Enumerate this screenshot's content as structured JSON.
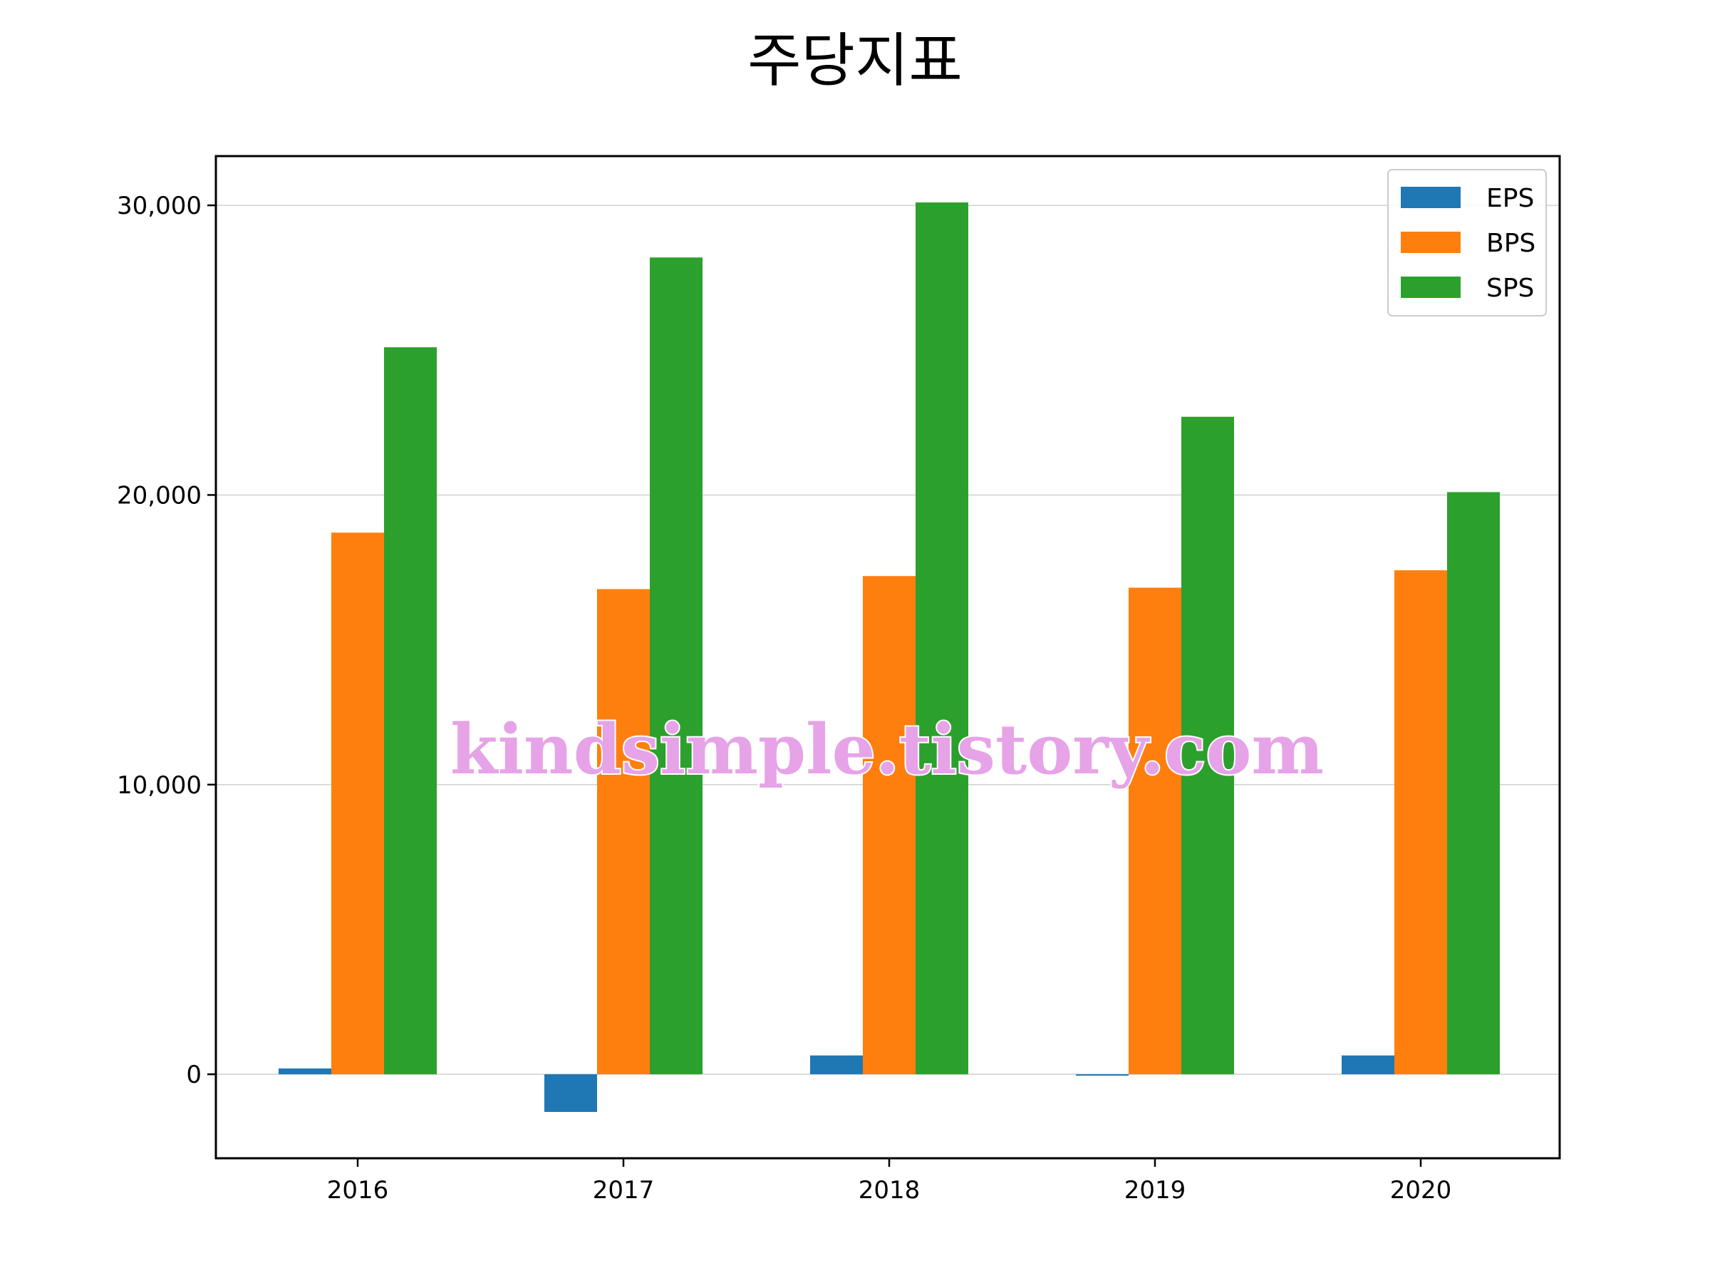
{
  "chart_data": {
    "type": "bar",
    "title": "주당지표",
    "categories": [
      "2016",
      "2017",
      "2018",
      "2019",
      "2020"
    ],
    "series": [
      {
        "name": "EPS",
        "color": "#1f77b4",
        "values": [
          200,
          -1300,
          650,
          -50,
          650
        ]
      },
      {
        "name": "BPS",
        "color": "#ff7f0e",
        "values": [
          18700,
          16750,
          17200,
          16800,
          17400
        ]
      },
      {
        "name": "SPS",
        "color": "#2ca02c",
        "values": [
          25100,
          28200,
          30100,
          22700,
          20100
        ]
      }
    ],
    "ylim": [
      -2900,
      31700
    ],
    "yticks": [
      0,
      10000,
      20000,
      30000
    ],
    "ytick_labels": [
      "0",
      "10,000",
      "20,000",
      "30,000"
    ],
    "grid": "y",
    "legend_position": "top-right"
  },
  "watermark": "kindsimple.tistory.com"
}
